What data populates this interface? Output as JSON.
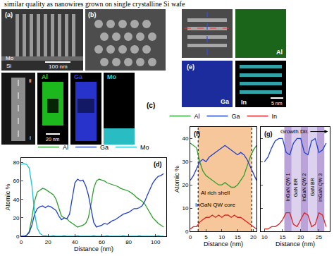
{
  "header": {
    "text": "similar quality as nanowires grown on single crystalline Si wafe"
  },
  "images": {
    "a": {
      "label": "(a)",
      "layer_top": "Mo",
      "layer_bottom": "Si",
      "scale": "100 nm"
    },
    "b": {
      "label": "(b)"
    },
    "c": {
      "label": "(c)",
      "scale": "20 nm",
      "line_start": "i",
      "line_end": "ii",
      "maps": [
        {
          "name": "Al",
          "color": "#22d822"
        },
        {
          "name": "Ga",
          "color": "#2f3cf0"
        },
        {
          "name": "Mo",
          "color": "#2fd0d8"
        }
      ]
    },
    "e": {
      "label": "(e)",
      "scale": "5 nm",
      "maps": [
        {
          "name": "Al",
          "color": "#2fb82f"
        },
        {
          "name": "Ga",
          "color": "#2a3fe0"
        },
        {
          "name": "In",
          "color": "#40d8e0"
        }
      ]
    }
  },
  "chart_data": [
    {
      "type": "line",
      "title": "(d)",
      "x_label": "Distance (nm)",
      "y_label": "Atomic %",
      "x": [
        0,
        2,
        4,
        6,
        8,
        10,
        12,
        14,
        16,
        18,
        20,
        22,
        24,
        26,
        28,
        30,
        32,
        34,
        36,
        38,
        40,
        42,
        44,
        46,
        48,
        50,
        52,
        54,
        56,
        58,
        60,
        62,
        64,
        66,
        68,
        70,
        72,
        74,
        76,
        78,
        80,
        82,
        84,
        86,
        88,
        90,
        92,
        94,
        96,
        98,
        100,
        102,
        104,
        106
      ],
      "series": [
        {
          "name": "Al",
          "color": "#2ca02c",
          "values": [
            0,
            0,
            1,
            5,
            20,
            38,
            48,
            50,
            52,
            51,
            49,
            47,
            45,
            40,
            30,
            22,
            20,
            19,
            16,
            14,
            12,
            10,
            11,
            12,
            14,
            20,
            35,
            52,
            60,
            62,
            61,
            60,
            58,
            57,
            56,
            55,
            54,
            52,
            51,
            50,
            49,
            47,
            45,
            42,
            40,
            38,
            35,
            30,
            25,
            20,
            17,
            14,
            12,
            10
          ]
        },
        {
          "name": "Ga",
          "color": "#1f3fd0",
          "values": [
            0,
            0,
            1,
            4,
            12,
            24,
            30,
            32,
            33,
            31,
            33,
            32,
            30,
            28,
            22,
            18,
            20,
            19,
            24,
            40,
            58,
            62,
            60,
            61,
            55,
            45,
            30,
            15,
            10,
            11,
            12,
            14,
            13,
            15,
            17,
            18,
            20,
            22,
            24,
            25,
            26,
            28,
            30,
            30,
            31,
            33,
            38,
            45,
            52,
            58,
            62,
            65,
            66,
            68
          ]
        },
        {
          "name": "Mo",
          "color": "#17c4d4",
          "values": [
            78,
            79,
            78,
            74,
            55,
            25,
            9,
            3,
            1,
            1,
            0,
            0,
            1,
            0,
            0,
            0,
            1,
            0,
            0,
            0,
            0,
            1,
            0,
            0,
            0,
            0,
            0,
            1,
            0,
            0,
            0,
            0,
            1,
            0,
            0,
            0,
            0,
            0,
            1,
            0,
            0,
            0,
            0,
            0,
            1,
            0,
            0,
            0,
            0,
            0,
            0,
            1,
            0,
            0
          ]
        }
      ],
      "xlim": [
        0,
        108
      ],
      "ylim": [
        0,
        85
      ],
      "xticks": [
        0,
        20,
        40,
        60,
        80,
        100
      ],
      "yticks": [
        0,
        20,
        40,
        60,
        80
      ],
      "legend": "top",
      "grid": false
    },
    {
      "type": "line",
      "title": "(f)",
      "x_label": "Distance (nm)",
      "y_label": "Atomic %",
      "x": [
        0,
        1,
        2,
        3,
        4,
        5,
        6,
        7,
        8,
        9,
        10,
        11,
        12,
        13,
        14,
        15,
        16,
        17,
        18,
        19,
        20,
        21
      ],
      "series": [
        {
          "name": "Al",
          "color": "#2ca02c",
          "values": [
            38,
            37,
            36,
            30,
            26,
            24,
            23,
            22,
            21,
            20,
            20,
            21,
            20,
            19,
            19,
            20,
            22,
            24,
            28,
            32,
            35,
            37
          ]
        },
        {
          "name": "Ga",
          "color": "#1f3fd0",
          "values": [
            22,
            24,
            27,
            30,
            31,
            30,
            32,
            33,
            34,
            35,
            36,
            37,
            36,
            35,
            34,
            33,
            34,
            33,
            31,
            28,
            25,
            22
          ]
        },
        {
          "name": "In",
          "color": "#e02020",
          "values": [
            1,
            2,
            2,
            4,
            5,
            6,
            6,
            7,
            6,
            7,
            6,
            7,
            7,
            6,
            7,
            6,
            6,
            5,
            4,
            3,
            2,
            1
          ]
        }
      ],
      "regions": [
        {
          "x0": 2.5,
          "x1": 19.5,
          "color": "#f6c79a"
        }
      ],
      "annotations": [
        {
          "text": "Al rich shell",
          "x": 8,
          "y": 16.5
        },
        {
          "text": "InGaN QW core",
          "x": 8,
          "y": 11.5
        }
      ],
      "xlim": [
        0,
        21
      ],
      "ylim": [
        0,
        45
      ],
      "xticks": [
        0,
        5,
        10,
        15,
        20
      ],
      "yticks": [
        0,
        10,
        20,
        30,
        40
      ],
      "legend": "top",
      "grid": false
    },
    {
      "type": "line",
      "title": "(g)",
      "x_label": "Distance (nm)",
      "x": [
        10,
        11,
        12,
        13,
        14,
        15,
        16,
        17,
        18,
        19,
        20,
        21,
        22,
        23,
        24,
        25,
        26,
        27
      ],
      "series": [
        {
          "color": "#1f3fd0",
          "values": [
            30,
            32,
            36,
            39,
            40,
            40,
            34,
            33,
            38,
            40,
            40,
            34,
            33,
            39,
            40,
            34,
            35,
            38
          ]
        },
        {
          "color": "#e02020",
          "values": [
            1,
            1,
            2,
            2,
            3,
            5,
            8,
            8,
            3,
            2,
            5,
            8,
            7,
            2,
            3,
            8,
            7,
            2
          ]
        }
      ],
      "regions": [
        {
          "label": "InGaN QW 1",
          "x0": 15.5,
          "x1": 17.5,
          "color": "#b9a3d9"
        },
        {
          "label": "GaN BR",
          "x0": 17.5,
          "x1": 20,
          "color": "#ddd2ee"
        },
        {
          "label": "InGaN QW 2",
          "x0": 20,
          "x1": 22,
          "color": "#b9a3d9"
        },
        {
          "label": "GaN BR",
          "x0": 22,
          "x1": 24.5,
          "color": "#ddd2ee"
        },
        {
          "label": "InGaN QW 3",
          "x0": 24.5,
          "x1": 26.5,
          "color": "#b9a3d9"
        }
      ],
      "annotations": [
        {
          "text": "Growth Dir.",
          "x": 27.5,
          "y": 43,
          "marker": "arrow"
        }
      ],
      "xlim": [
        9,
        28
      ],
      "ylim": [
        0,
        45
      ],
      "xticks": [
        10,
        15,
        20,
        25
      ],
      "yticks": [
        0,
        10,
        20,
        30,
        40
      ],
      "tick_labels": "x",
      "grid": false
    }
  ]
}
